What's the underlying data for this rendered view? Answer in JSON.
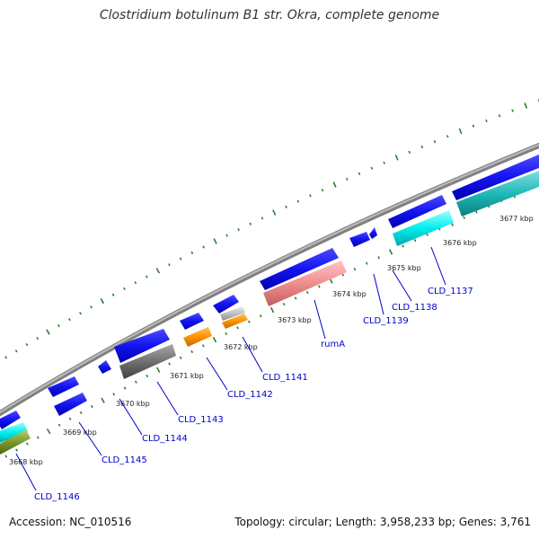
{
  "title": "Clostridium botulinum B1 str. Okra, complete genome",
  "footer": {
    "accession": "Accession: NC_010516",
    "stats": "Topology: circular; Length: 3,958,233 bp; Genes: 3,761"
  },
  "genome": {
    "accession": "NC_010516",
    "topology": "circular",
    "length_bp": 3958233,
    "gene_count": 3761
  },
  "kbp_ticks": [
    "3668 kbp",
    "3669 kbp",
    "3670 kbp",
    "3671 kbp",
    "3672 kbp",
    "3673 kbp",
    "3674 kbp",
    "3675 kbp",
    "3676 kbp",
    "3677 kbp"
  ],
  "gene_labels": [
    "CLD_1146",
    "CLD_1145",
    "CLD_1144",
    "CLD_1143",
    "CLD_1142",
    "CLD_1141",
    "rumA",
    "CLD_1139",
    "CLD_1138",
    "CLD_1137"
  ],
  "colors": {
    "forward_gene": "#1414f0",
    "cyan_gene": "#00eeee",
    "teal_gene": "#20b8b8",
    "pink_gene": "#f08e8e",
    "orange_gene": "#ff9300",
    "gray_gene": "#707070",
    "light_gray_gene": "#c0c0c0",
    "olive_gene": "#7c9a2e",
    "tick_mark": "#2e7d2e",
    "label_text": "#0000cc",
    "leader_line": "#0000cc"
  }
}
